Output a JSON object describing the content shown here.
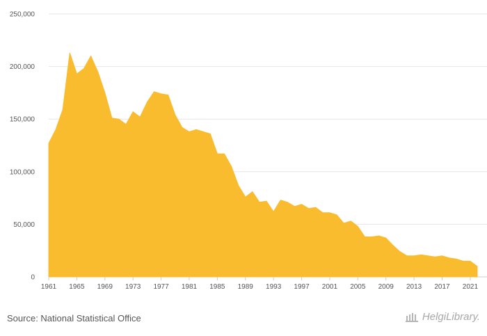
{
  "source": "Source: National Statistical Office",
  "logo": {
    "text": "HelgiLibrary."
  },
  "chart_data": {
    "type": "area",
    "title": "",
    "xlabel": "",
    "ylabel": "",
    "color": "#F9BC2F",
    "grid": true,
    "ylim": [
      0,
      250000
    ],
    "yticks": [
      0,
      50000,
      100000,
      150000,
      200000,
      250000
    ],
    "ytick_labels": [
      "0",
      "50,000",
      "100,000",
      "150,000",
      "200,000",
      "250,000"
    ],
    "xticks": [
      1961,
      1965,
      1969,
      1973,
      1977,
      1981,
      1985,
      1989,
      1993,
      1997,
      2001,
      2005,
      2009,
      2013,
      2017,
      2021
    ],
    "xtick_labels": [
      "1961",
      "1965",
      "1969",
      "1973",
      "1977",
      "1981",
      "1985",
      "1989",
      "1993",
      "1997",
      "2001",
      "2005",
      "2009",
      "2013",
      "2017",
      "2021"
    ],
    "x": [
      1961,
      1962,
      1963,
      1964,
      1965,
      1966,
      1967,
      1968,
      1969,
      1970,
      1971,
      1972,
      1973,
      1974,
      1975,
      1976,
      1977,
      1978,
      1979,
      1980,
      1981,
      1982,
      1983,
      1984,
      1985,
      1986,
      1987,
      1988,
      1989,
      1990,
      1991,
      1992,
      1993,
      1994,
      1995,
      1996,
      1997,
      1998,
      1999,
      2000,
      2001,
      2002,
      2003,
      2004,
      2005,
      2006,
      2007,
      2008,
      2009,
      2010,
      2011,
      2012,
      2013,
      2014,
      2015,
      2016,
      2017,
      2018,
      2019,
      2020,
      2021,
      2022
    ],
    "values": [
      127000,
      140000,
      159000,
      213000,
      193000,
      198000,
      210000,
      195000,
      175000,
      151000,
      150000,
      145000,
      157000,
      152000,
      166000,
      176000,
      174000,
      173000,
      154000,
      142000,
      138000,
      140000,
      138000,
      136000,
      117000,
      117000,
      105000,
      87000,
      76000,
      81000,
      71000,
      72000,
      62000,
      73000,
      71000,
      67000,
      69000,
      65000,
      66000,
      61000,
      61000,
      59000,
      51000,
      53000,
      48000,
      38000,
      38000,
      39000,
      37000,
      30000,
      24000,
      20000,
      20000,
      21000,
      20000,
      19000,
      20000,
      18000,
      17000,
      15000,
      15000,
      10000
    ]
  }
}
